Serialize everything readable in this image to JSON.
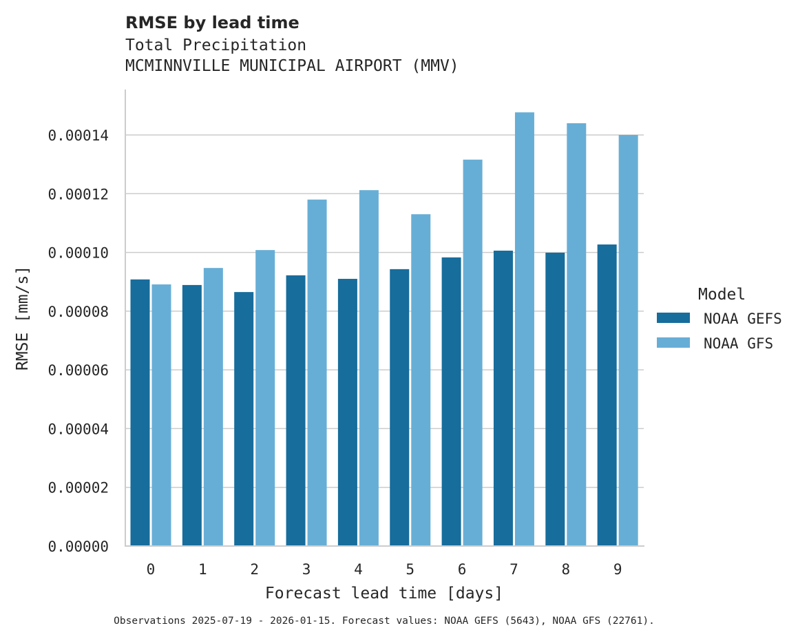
{
  "chart_data": {
    "type": "bar",
    "title": "RMSE by lead time",
    "subtitle": "Total Precipitation",
    "subtitle2": "MCMINNVILLE MUNICIPAL AIRPORT (MMV)",
    "xlabel": "Forecast lead time [days]",
    "ylabel": "RMSE [mm/s]",
    "categories": [
      "0",
      "1",
      "2",
      "3",
      "4",
      "5",
      "6",
      "7",
      "8",
      "9"
    ],
    "ylim": [
      0,
      0.000155
    ],
    "yticks": [
      "0.00000",
      "0.00002",
      "0.00004",
      "0.00006",
      "0.00008",
      "0.00010",
      "0.00012",
      "0.00014"
    ],
    "ytick_values": [
      0,
      2e-05,
      4e-05,
      6e-05,
      8e-05,
      0.0001,
      0.00012,
      0.00014
    ],
    "grid": true,
    "legend": {
      "title": "Model",
      "placement": "right"
    },
    "series": [
      {
        "name": "NOAA GEFS",
        "color": "#176d9c",
        "values": [
          9.08e-05,
          8.89e-05,
          8.65e-05,
          9.22e-05,
          9.1e-05,
          9.43e-05,
          9.83e-05,
          0.0001006,
          9.99e-05,
          0.0001027
        ]
      },
      {
        "name": "NOAA GFS",
        "color": "#67aed6",
        "values": [
          8.91e-05,
          9.47e-05,
          0.0001008,
          0.000118,
          0.0001212,
          0.000113,
          0.0001316,
          0.0001477,
          0.000144,
          0.00014
        ]
      }
    ],
    "footer": "Observations 2025-07-19 - 2026-01-15. Forecast values: NOAA GEFS (5643), NOAA GFS (22761)."
  }
}
